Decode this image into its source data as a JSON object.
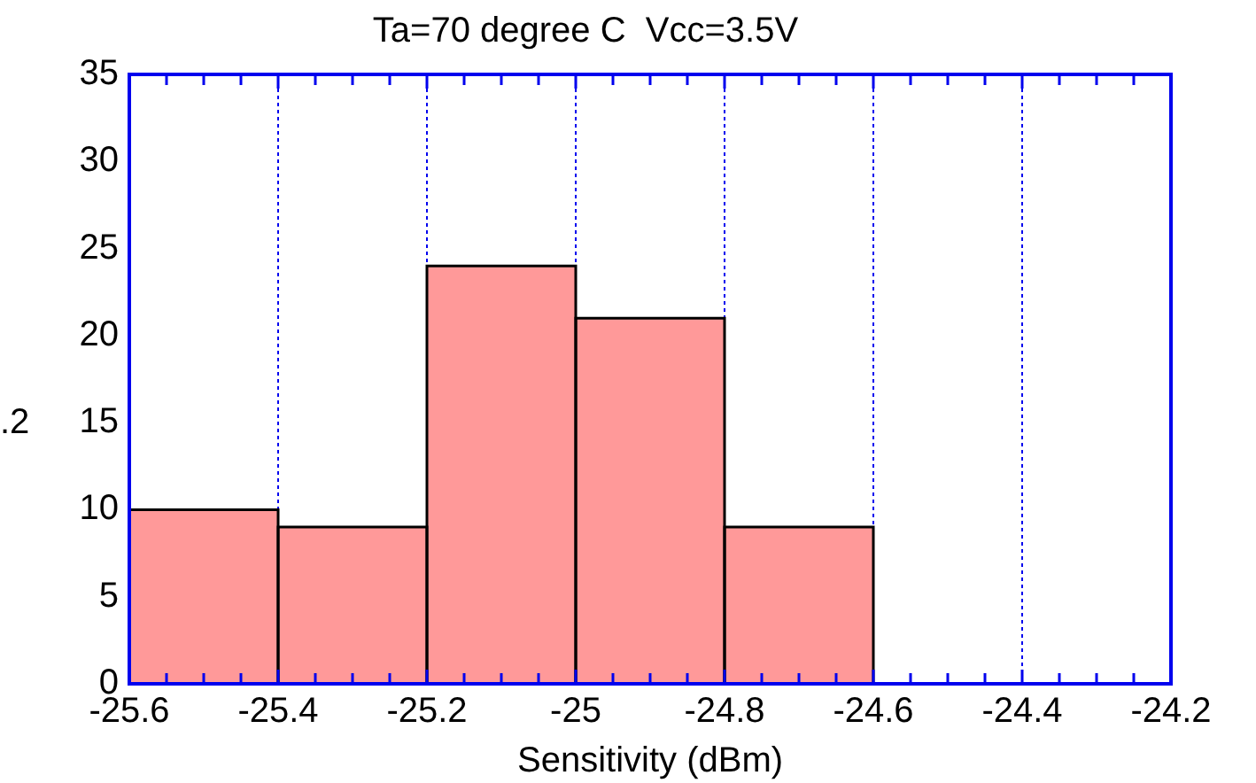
{
  "chart_data": {
    "type": "histogram",
    "title": "Ta=70 degree C  Vcc=3.5V",
    "xlabel": "Sensitivity (dBm)",
    "ylabel": ".2",
    "bins": [
      -25.6,
      -25.4,
      -25.2,
      -25.0,
      -24.8,
      -24.6
    ],
    "values": [
      10,
      9,
      24,
      21,
      9
    ],
    "color": "#ff9999",
    "xlim": [
      -25.6,
      -24.2
    ],
    "xticks": [
      -25.6,
      -25.4,
      -25.2,
      -25,
      -24.8,
      -24.6,
      -24.4,
      -24.2
    ],
    "ylim": [
      0,
      35
    ],
    "yticks": [
      0,
      5,
      10,
      15,
      20,
      25,
      30,
      35
    ],
    "grid": "x"
  }
}
